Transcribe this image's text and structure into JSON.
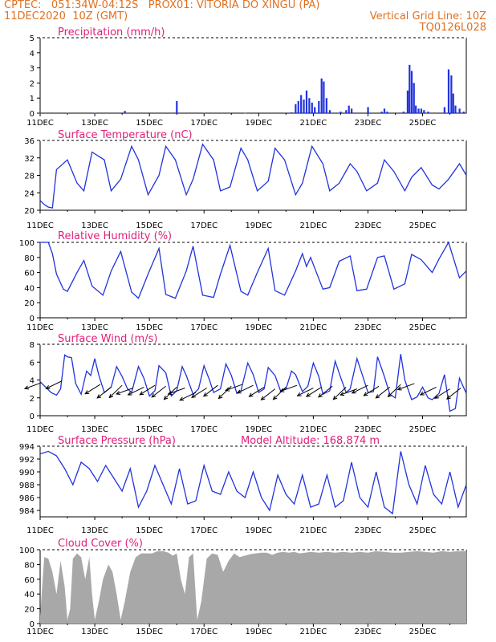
{
  "header": {
    "line1_left": "CPTEC:   051:34W-04:12S   PROX01: VITORIA DO XINGU (PA)",
    "line2_left": "11DEC2020  10Z (GMT)",
    "line2_right": "Vertical Grid Line: 10Z",
    "line3_right": "TQ0126L028"
  },
  "colors": {
    "header": "#e07020",
    "title": "#e0207a",
    "line": "#2233dd",
    "bar": "#2233dd",
    "cloud": "#a8a8a8",
    "axis": "#000000"
  },
  "x_axis": {
    "ticks": [
      "11DEC",
      "13DEC",
      "15DEC",
      "17DEC",
      "19DEC",
      "21DEC",
      "23DEC",
      "25DEC"
    ]
  },
  "chart_data": [
    {
      "type": "bar",
      "title": "Precipitation (mm/h)",
      "ylim": [
        0,
        5
      ],
      "yticks": [
        "0",
        "1",
        "2",
        "3",
        "4",
        "5"
      ],
      "x_unit": "days since 11DEC 00Z",
      "values": [
        [
          0.0,
          0.02
        ],
        [
          1.0,
          0.02
        ],
        [
          2.0,
          0.02
        ],
        [
          3.1,
          0.15
        ],
        [
          5.0,
          0.8
        ],
        [
          6.0,
          0.02
        ],
        [
          7.5,
          0.02
        ],
        [
          9.2,
          0.05
        ],
        [
          9.35,
          0.6
        ],
        [
          9.45,
          0.8
        ],
        [
          9.55,
          1.2
        ],
        [
          9.65,
          0.9
        ],
        [
          9.75,
          1.5
        ],
        [
          9.85,
          1.0
        ],
        [
          9.95,
          0.7
        ],
        [
          10.05,
          0.4
        ],
        [
          10.2,
          0.8
        ],
        [
          10.3,
          2.3
        ],
        [
          10.38,
          2.1
        ],
        [
          10.48,
          1.0
        ],
        [
          10.6,
          0.2
        ],
        [
          11.0,
          0.1
        ],
        [
          11.2,
          0.2
        ],
        [
          11.3,
          0.5
        ],
        [
          11.4,
          0.3
        ],
        [
          12.0,
          0.4
        ],
        [
          12.5,
          0.1
        ],
        [
          12.6,
          0.3
        ],
        [
          12.7,
          0.1
        ],
        [
          13.3,
          0.1
        ],
        [
          13.45,
          1.5
        ],
        [
          13.52,
          3.2
        ],
        [
          13.6,
          2.8
        ],
        [
          13.68,
          2.0
        ],
        [
          13.75,
          0.5
        ],
        [
          13.85,
          0.3
        ],
        [
          13.95,
          0.3
        ],
        [
          14.05,
          0.2
        ],
        [
          14.2,
          0.1
        ],
        [
          14.8,
          0.4
        ],
        [
          14.95,
          2.9
        ],
        [
          15.05,
          2.5
        ],
        [
          15.12,
          1.3
        ],
        [
          15.2,
          0.5
        ],
        [
          15.35,
          0.3
        ],
        [
          15.5,
          0.1
        ]
      ]
    },
    {
      "type": "line",
      "title": "Surface Temperature (nC)",
      "ylim": [
        18,
        36
      ],
      "yticks": [
        "20",
        "24",
        "28",
        "32",
        "36"
      ],
      "x_unit": "days since 11DEC 00Z",
      "x": [
        0,
        0.15,
        0.3,
        0.45,
        0.6,
        1.0,
        1.35,
        1.6,
        1.9,
        2.35,
        2.6,
        2.95,
        3.35,
        3.6,
        3.95,
        4.35,
        4.6,
        4.95,
        5.35,
        5.6,
        5.95,
        6.35,
        6.6,
        6.95,
        7.35,
        7.6,
        7.95,
        8.35,
        8.6,
        8.95,
        9.35,
        9.6,
        9.95,
        10.35,
        10.6,
        10.95,
        11.35,
        11.6,
        11.95,
        12.35,
        12.6,
        12.95,
        13.35,
        13.6,
        13.95,
        14.35,
        14.6,
        14.95,
        15.35,
        15.6
      ],
      "y": [
        20.5,
        19.5,
        18.8,
        18.6,
        28.5,
        31.0,
        25.0,
        23.0,
        33.0,
        31.0,
        23.0,
        26.0,
        34.5,
        31.0,
        22.0,
        27.0,
        34.5,
        31.0,
        22.0,
        26.0,
        35.0,
        31.0,
        23.0,
        24.0,
        34.0,
        31.0,
        23.0,
        25.5,
        34.0,
        31.0,
        22.0,
        25.0,
        34.5,
        30.0,
        23.0,
        25.0,
        30.0,
        28.0,
        23.0,
        25.0,
        31.0,
        28.0,
        23.0,
        26.5,
        29.0,
        24.5,
        23.5,
        26.0,
        30.0,
        27.0
      ]
    },
    {
      "type": "line",
      "title": "Relative Humidity (%)",
      "ylim": [
        0,
        100
      ],
      "yticks": [
        "0",
        "20",
        "40",
        "60",
        "80",
        "100"
      ],
      "x_unit": "days since 11DEC 00Z",
      "x": [
        0,
        0.3,
        0.45,
        0.6,
        0.85,
        1.0,
        1.35,
        1.6,
        1.9,
        2.3,
        2.6,
        2.95,
        3.35,
        3.6,
        3.95,
        4.35,
        4.6,
        4.95,
        5.35,
        5.6,
        5.95,
        6.35,
        6.6,
        6.95,
        7.35,
        7.6,
        7.95,
        8.35,
        8.6,
        8.95,
        9.35,
        9.6,
        9.75,
        9.9,
        10.35,
        10.6,
        10.95,
        11.35,
        11.6,
        11.95,
        12.35,
        12.6,
        12.95,
        13.35,
        13.6,
        13.95,
        14.35,
        14.6,
        14.95,
        15.35,
        15.6
      ],
      "y": [
        100,
        100,
        85,
        58,
        38,
        35,
        60,
        76,
        42,
        30,
        62,
        88,
        34,
        26,
        58,
        92,
        31,
        26,
        62,
        95,
        30,
        27,
        58,
        96,
        35,
        30,
        60,
        92,
        36,
        30,
        62,
        85,
        68,
        80,
        38,
        40,
        75,
        82,
        36,
        38,
        80,
        82,
        38,
        45,
        84,
        77,
        60,
        78,
        100,
        53,
        62
      ]
    },
    {
      "type": "line",
      "title": "Surface Wind (m/s)",
      "ylim": [
        0,
        8
      ],
      "yticks": [
        "0",
        "2",
        "4",
        "6",
        "8"
      ],
      "x_unit": "days since 11DEC 00Z",
      "x": [
        0,
        0.2,
        0.4,
        0.6,
        0.75,
        0.9,
        1.0,
        1.15,
        1.3,
        1.5,
        1.7,
        1.85,
        2.0,
        2.15,
        2.35,
        2.6,
        2.8,
        3.0,
        3.2,
        3.35,
        3.6,
        3.8,
        4.0,
        4.2,
        4.35,
        4.6,
        4.8,
        5.0,
        5.2,
        5.35,
        5.6,
        5.8,
        6.0,
        6.2,
        6.35,
        6.6,
        6.8,
        7.0,
        7.2,
        7.35,
        7.6,
        7.8,
        8.0,
        8.2,
        8.35,
        8.6,
        8.8,
        9.0,
        9.2,
        9.35,
        9.6,
        9.8,
        10.0,
        10.2,
        10.35,
        10.6,
        10.8,
        11.0,
        11.2,
        11.35,
        11.6,
        11.8,
        12.0,
        12.2,
        12.35,
        12.6,
        12.8,
        13.0,
        13.2,
        13.35,
        13.6,
        13.8,
        14.0,
        14.2,
        14.35,
        14.6,
        14.8,
        15.0,
        15.2,
        15.35,
        15.6
      ],
      "y": [
        3.8,
        3.2,
        2.6,
        2.3,
        3.0,
        6.8,
        6.6,
        6.5,
        3.6,
        2.4,
        5.0,
        4.5,
        6.4,
        4.5,
        2.6,
        3.2,
        5.5,
        4.4,
        3.0,
        2.6,
        5.5,
        4.2,
        2.2,
        2.8,
        5.6,
        4.8,
        2.2,
        2.8,
        5.5,
        4.5,
        2.4,
        3.0,
        5.6,
        4.0,
        2.6,
        3.0,
        5.8,
        4.5,
        2.5,
        2.8,
        5.9,
        4.6,
        2.6,
        3.0,
        5.4,
        4.5,
        2.8,
        3.0,
        5.0,
        4.6,
        2.7,
        3.3,
        5.9,
        4.4,
        2.4,
        2.8,
        6.1,
        4.3,
        2.6,
        3.0,
        6.4,
        4.5,
        2.6,
        2.7,
        6.6,
        4.4,
        2.4,
        2.0,
        6.9,
        4.0,
        1.8,
        2.1,
        3.2,
        2.0,
        1.8,
        2.5,
        4.6,
        0.5,
        0.8,
        4.2,
        2.5
      ],
      "wind_barbs_x": [
        0.05,
        0.8,
        2.2,
        2.6,
        3.0,
        3.4,
        3.8,
        4.2,
        4.6,
        5.0,
        5.3,
        5.7,
        6.1,
        6.5,
        7.0,
        7.4,
        7.8,
        8.2,
        8.6,
        9.0,
        9.4,
        10.0,
        10.3,
        10.7,
        11.2,
        11.6,
        12.0,
        12.4,
        12.8,
        13.2,
        13.7,
        14.5,
        15.0,
        15.4
      ],
      "wind_barbs_y": [
        3.7,
        3.9,
        3.5,
        3.2,
        3.4,
        3.1,
        3.2,
        3.4,
        3.3,
        3.2,
        3.1,
        2.6,
        3.1,
        3.4,
        3.3,
        3.5,
        3.4,
        3.2,
        3.0,
        3.2,
        3.4,
        3.1,
        3.2,
        3.3,
        3.2,
        3.0,
        3.4,
        3.3,
        3.2,
        3.5,
        3.6,
        3.2,
        3.0,
        3.1
      ]
    },
    {
      "type": "line",
      "title": "Surface Pressure (hPa)",
      "subtitle": "Model Altitude: 168.874  m",
      "ylim": [
        983,
        994
      ],
      "yticks": [
        "984",
        "986",
        "988",
        "990",
        "992",
        "994"
      ],
      "x_unit": "days since 11DEC 00Z",
      "x": [
        0,
        0.3,
        0.6,
        0.9,
        1.2,
        1.5,
        1.8,
        2.1,
        2.4,
        2.7,
        3.0,
        3.3,
        3.6,
        3.9,
        4.2,
        4.5,
        4.8,
        5.1,
        5.4,
        5.7,
        6.0,
        6.3,
        6.6,
        6.9,
        7.2,
        7.5,
        7.8,
        8.1,
        8.4,
        8.7,
        9.0,
        9.3,
        9.6,
        9.9,
        10.2,
        10.5,
        10.8,
        11.1,
        11.4,
        11.7,
        12.0,
        12.3,
        12.6,
        12.9,
        13.2,
        13.5,
        13.8,
        14.1,
        14.4,
        14.7,
        15.0,
        15.3,
        15.6
      ],
      "y": [
        992.8,
        993.2,
        992.5,
        990.5,
        988.0,
        991.5,
        990.5,
        988.5,
        991.0,
        989.0,
        987.0,
        990.5,
        984.5,
        987.0,
        991.0,
        988.0,
        985.0,
        990.5,
        985.0,
        985.5,
        991.0,
        987.0,
        986.5,
        990.0,
        987.0,
        986.0,
        990.0,
        986.0,
        984.0,
        989.5,
        986.5,
        985.0,
        989.5,
        984.5,
        985.0,
        989.5,
        984.5,
        985.5,
        991.5,
        986.0,
        984.5,
        990.0,
        984.5,
        983.5,
        993.2,
        988.0,
        985.0,
        991.0,
        986.5,
        985.0,
        990.0,
        984.5,
        988.0
      ]
    },
    {
      "type": "area",
      "title": "Cloud Cover (%)",
      "ylim": [
        0,
        100
      ],
      "yticks": [
        "0",
        "20",
        "40",
        "60",
        "80",
        "100"
      ],
      "x_unit": "days since 11DEC 00Z",
      "x": [
        0,
        0.15,
        0.3,
        0.45,
        0.6,
        0.75,
        0.9,
        1.0,
        1.1,
        1.2,
        1.35,
        1.5,
        1.65,
        1.8,
        1.9,
        2.0,
        2.15,
        2.3,
        2.5,
        2.65,
        2.8,
        2.95,
        3.1,
        3.3,
        3.5,
        3.7,
        3.9,
        4.1,
        4.3,
        4.5,
        4.7,
        4.85,
        5.0,
        5.15,
        5.3,
        5.45,
        5.6,
        5.75,
        5.9,
        6.1,
        6.3,
        6.5,
        6.7,
        6.9,
        7.1,
        7.3,
        7.5,
        7.7,
        7.9,
        8.1,
        8.3,
        8.5,
        8.7,
        8.9,
        9.1,
        9.3,
        9.5,
        9.7,
        9.9,
        10.2,
        10.5,
        10.8,
        11.1,
        11.4,
        11.7,
        12.0,
        12.3,
        12.6,
        12.9,
        13.2,
        13.5,
        13.8,
        14.1,
        14.4,
        14.7,
        15.0,
        15.3,
        15.6
      ],
      "y": [
        10,
        90,
        88,
        70,
        40,
        85,
        50,
        5,
        20,
        88,
        95,
        90,
        60,
        90,
        40,
        5,
        30,
        60,
        80,
        70,
        40,
        5,
        30,
        70,
        90,
        95,
        95,
        95,
        98,
        98,
        96,
        92,
        95,
        60,
        40,
        90,
        95,
        5,
        30,
        88,
        95,
        93,
        70,
        85,
        95,
        90,
        92,
        94,
        95,
        96,
        96,
        93,
        96,
        97,
        96,
        97,
        95,
        96,
        97,
        96,
        97,
        96,
        97,
        96,
        97,
        96,
        98,
        97,
        96,
        96,
        97,
        98,
        97,
        96,
        98,
        97,
        98,
        98
      ]
    }
  ]
}
